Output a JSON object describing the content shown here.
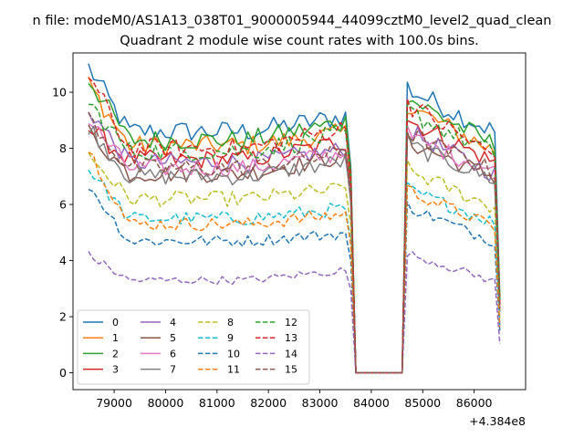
{
  "chart_data": {
    "type": "line",
    "suptitle": "n file: modeM0/AS1A13_038T01_9000005944_44099cztM0_level2_quad_clean",
    "title": "Quadrant 2 module wise count rates with 100.0s bins.",
    "x_offset_label": "+4.384e8",
    "xlim": [
      78200,
      87000
    ],
    "ylim": [
      -0.6,
      11.4
    ],
    "xticks": [
      79000,
      80000,
      81000,
      82000,
      83000,
      84000,
      85000,
      86000
    ],
    "yticks": [
      0,
      2,
      4,
      6,
      8,
      10
    ],
    "legend_position": "lower-left",
    "legend_columns": 4,
    "grid": false,
    "gap": {
      "start": 83700,
      "end": 84600
    },
    "x_range": [
      78500,
      86500
    ],
    "bin_seconds": 100,
    "series": [
      {
        "name": "0",
        "color": "#1f77b4",
        "dash": "solid",
        "start": 10.9,
        "level": 8.6,
        "mid2": 9.2,
        "post": 10.2,
        "end": 8.5
      },
      {
        "name": "1",
        "color": "#ff7f0e",
        "dash": "solid",
        "start": 10.3,
        "level": 8.1,
        "mid2": 8.6,
        "post": 9.6,
        "end": 7.8
      },
      {
        "name": "2",
        "color": "#2ca02c",
        "dash": "solid",
        "start": 10.5,
        "level": 8.3,
        "mid2": 9.0,
        "post": 9.9,
        "end": 8.0
      },
      {
        "name": "3",
        "color": "#d62728",
        "dash": "solid",
        "start": 8.7,
        "level": 7.6,
        "mid2": 8.3,
        "post": 9.1,
        "end": 7.4
      },
      {
        "name": "4",
        "color": "#9467bd",
        "dash": "solid",
        "start": 9.4,
        "level": 7.5,
        "mid2": 8.0,
        "post": 8.7,
        "end": 7.0
      },
      {
        "name": "5",
        "color": "#8c564b",
        "dash": "solid",
        "start": 8.6,
        "level": 7.1,
        "mid2": 7.8,
        "post": 8.3,
        "end": 6.9
      },
      {
        "name": "6",
        "color": "#e377c2",
        "dash": "solid",
        "start": 9.0,
        "level": 7.3,
        "mid2": 7.9,
        "post": 8.5,
        "end": 7.1
      },
      {
        "name": "7",
        "color": "#7f7f7f",
        "dash": "solid",
        "start": 8.8,
        "level": 7.0,
        "mid2": 7.6,
        "post": 8.2,
        "end": 6.8
      },
      {
        "name": "8",
        "color": "#bcbd22",
        "dash": "dashed",
        "start": 7.8,
        "level": 6.2,
        "mid2": 6.6,
        "post": 7.3,
        "end": 5.8
      },
      {
        "name": "9",
        "color": "#17becf",
        "dash": "dashed",
        "start": 7.3,
        "level": 5.5,
        "mid2": 5.9,
        "post": 6.6,
        "end": 5.3
      },
      {
        "name": "10",
        "color": "#1f77b4",
        "dash": "dashed",
        "start": 6.7,
        "level": 4.7,
        "mid2": 5.0,
        "post": 6.0,
        "end": 4.6
      },
      {
        "name": "11",
        "color": "#ff7f0e",
        "dash": "dashed",
        "start": 8.0,
        "level": 5.3,
        "mid2": 5.7,
        "post": 6.6,
        "end": 5.1
      },
      {
        "name": "12",
        "color": "#2ca02c",
        "dash": "dashed",
        "start": 9.6,
        "level": 7.9,
        "mid2": 8.6,
        "post": 9.4,
        "end": 7.7
      },
      {
        "name": "13",
        "color": "#d62728",
        "dash": "dashed",
        "start": 10.6,
        "level": 8.0,
        "mid2": 8.8,
        "post": 9.7,
        "end": 7.6
      },
      {
        "name": "14",
        "color": "#9467bd",
        "dash": "dashed",
        "start": 4.2,
        "level": 3.3,
        "mid2": 3.7,
        "post": 4.3,
        "end": 3.2
      },
      {
        "name": "15",
        "color": "#8c564b",
        "dash": "dashed",
        "start": 9.1,
        "level": 7.3,
        "mid2": 7.9,
        "post": 8.6,
        "end": 7.1
      }
    ]
  }
}
